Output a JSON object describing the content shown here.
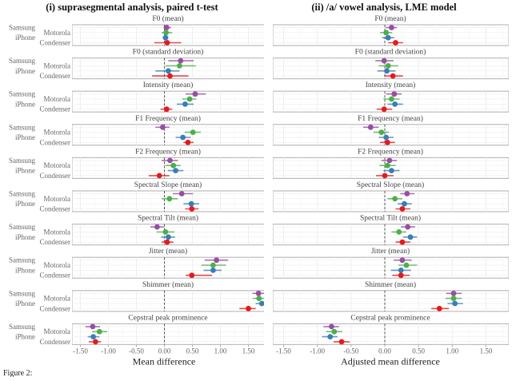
{
  "chart_data": [
    {
      "type": "scatter",
      "title": "(i) suprasegmental analysis, paired t-test",
      "xlabel": "Mean difference",
      "xlim": [
        -1.65,
        1.78
      ],
      "xticks": [
        "-1.50",
        "-1.00",
        "-0.50",
        "0.00",
        "0.50",
        "1.00",
        "1.50"
      ],
      "reference_line": 0,
      "devices": [
        "Samsung",
        "Motorola",
        "iPhone",
        "Condenser"
      ],
      "facets": [
        {
          "title": "F0 (mean)",
          "est": [
            0.04,
            0.03,
            0.02,
            0.05
          ],
          "lo": [
            -0.02,
            -0.05,
            -0.03,
            -0.18
          ],
          "hi": [
            0.12,
            0.14,
            0.07,
            0.3
          ]
        },
        {
          "title": "F0 (standard deviation)",
          "est": [
            0.29,
            0.27,
            0.07,
            0.1
          ],
          "lo": [
            0.07,
            0.02,
            -0.16,
            -0.22
          ],
          "hi": [
            0.52,
            0.56,
            0.27,
            0.43
          ]
        },
        {
          "title": "Intensity (mean)",
          "est": [
            0.55,
            0.45,
            0.37,
            0.04
          ],
          "lo": [
            0.38,
            0.32,
            0.22,
            -0.07
          ],
          "hi": [
            0.74,
            0.57,
            0.52,
            0.14
          ]
        },
        {
          "title": "F1 Frequency (mean)",
          "est": [
            -0.03,
            0.51,
            0.33,
            0.42
          ],
          "lo": [
            -0.16,
            0.36,
            0.2,
            0.34
          ],
          "hi": [
            0.09,
            0.65,
            0.47,
            0.52
          ]
        },
        {
          "title": "F2 Frequency (mean)",
          "est": [
            0.1,
            0.16,
            0.2,
            -0.09
          ],
          "lo": [
            -0.05,
            0.02,
            0.06,
            -0.28
          ],
          "hi": [
            0.24,
            0.29,
            0.34,
            0.09
          ]
        },
        {
          "title": "Spectral Slope (mean)",
          "est": [
            0.31,
            0.09,
            0.48,
            0.49
          ],
          "lo": [
            0.15,
            -0.05,
            0.34,
            0.37
          ],
          "hi": [
            0.51,
            0.24,
            0.62,
            0.61
          ]
        },
        {
          "title": "Spectral Tilt (mean)",
          "est": [
            -0.13,
            0.02,
            0.07,
            0.05
          ],
          "lo": [
            -0.25,
            -0.14,
            -0.06,
            -0.05
          ],
          "hi": [
            -0.01,
            0.18,
            0.19,
            0.16
          ]
        },
        {
          "title": "Jitter (mean)",
          "est": [
            0.93,
            0.87,
            0.87,
            0.49
          ],
          "lo": [
            0.72,
            0.66,
            0.7,
            0.38
          ],
          "hi": [
            1.14,
            1.1,
            1.02,
            0.85
          ]
        },
        {
          "title": "Shimmer (mean)",
          "est": [
            1.68,
            1.69,
            1.74,
            1.5
          ],
          "lo": [
            1.57,
            1.58,
            1.63,
            1.34
          ],
          "hi": [
            1.79,
            1.8,
            1.85,
            1.63
          ]
        },
        {
          "title": "Cepstral peak prominence",
          "est": [
            -1.28,
            -1.16,
            -1.27,
            -1.23
          ],
          "lo": [
            -1.41,
            -1.29,
            -1.37,
            -1.35
          ],
          "hi": [
            -1.15,
            -1.02,
            -1.16,
            -1.13
          ]
        }
      ]
    },
    {
      "type": "scatter",
      "title": "(ii) /a/ vowel analysis, LME model",
      "xlabel": "Adjusted mean difference",
      "xlim": [
        -1.75,
        1.8
      ],
      "xticks": [
        "-1.50",
        "-1.00",
        "-0.50",
        "0.00",
        "0.50",
        "1.00",
        "1.50"
      ],
      "reference_line": 0,
      "devices": [
        "Samsung",
        "Motorola",
        "iPhone",
        "Condenser"
      ],
      "facets": [
        {
          "title": "F0 (mean)",
          "est": [
            0.1,
            0.02,
            0.05,
            0.16
          ],
          "lo": [
            0.01,
            -0.07,
            -0.04,
            0.05
          ],
          "hi": [
            0.18,
            0.11,
            0.14,
            0.27
          ]
        },
        {
          "title": "F0 (standard deviation)",
          "est": [
            -0.01,
            0.05,
            0.03,
            0.12
          ],
          "lo": [
            -0.14,
            -0.09,
            -0.11,
            -0.01
          ],
          "hi": [
            0.13,
            0.2,
            0.16,
            0.27
          ]
        },
        {
          "title": "Intensity (mean)",
          "est": [
            0.14,
            0.1,
            0.15,
            -0.01
          ],
          "lo": [
            0.02,
            -0.02,
            0.04,
            -0.12
          ],
          "hi": [
            0.25,
            0.22,
            0.27,
            0.11
          ]
        },
        {
          "title": "F1 Frequency (mean)",
          "est": [
            -0.21,
            -0.05,
            0.02,
            0.04
          ],
          "lo": [
            -0.32,
            -0.17,
            -0.09,
            -0.07
          ],
          "hi": [
            -0.09,
            0.06,
            0.13,
            0.15
          ]
        },
        {
          "title": "F2 Frequency (mean)",
          "est": [
            0.07,
            0.04,
            0.1,
            0.0
          ],
          "lo": [
            -0.05,
            -0.08,
            -0.02,
            -0.13
          ],
          "hi": [
            0.18,
            0.16,
            0.22,
            0.13
          ]
        },
        {
          "title": "Spectral Slope (mean)",
          "est": [
            0.33,
            0.15,
            0.29,
            0.26
          ],
          "lo": [
            0.23,
            0.04,
            0.19,
            0.16
          ],
          "hi": [
            0.44,
            0.26,
            0.4,
            0.38
          ]
        },
        {
          "title": "Spectral Tilt (mean)",
          "est": [
            0.34,
            0.21,
            0.38,
            0.26
          ],
          "lo": [
            0.24,
            0.1,
            0.27,
            0.16
          ],
          "hi": [
            0.45,
            0.32,
            0.48,
            0.38
          ]
        },
        {
          "title": "Jitter (mean)",
          "est": [
            0.26,
            0.32,
            0.24,
            0.24
          ],
          "lo": [
            0.13,
            0.2,
            0.09,
            0.11
          ],
          "hi": [
            0.4,
            0.48,
            0.39,
            0.37
          ]
        },
        {
          "title": "Shimmer (mean)",
          "est": [
            1.02,
            1.02,
            1.04,
            0.81
          ],
          "lo": [
            0.91,
            0.9,
            0.93,
            0.69
          ],
          "hi": [
            1.14,
            1.14,
            1.16,
            0.95
          ]
        },
        {
          "title": "Cepstral peak prominence",
          "est": [
            -0.79,
            -0.75,
            -0.81,
            -0.64
          ],
          "lo": [
            -0.91,
            -0.87,
            -0.93,
            -0.76
          ],
          "hi": [
            -0.68,
            -0.63,
            -0.7,
            -0.52
          ]
        }
      ]
    }
  ],
  "colors": {
    "Samsung": "#984ea3",
    "Motorola": "#4daf4a",
    "iPhone": "#377eb8",
    "Condenser": "#e41a1c"
  },
  "caption": "Figure 2:"
}
